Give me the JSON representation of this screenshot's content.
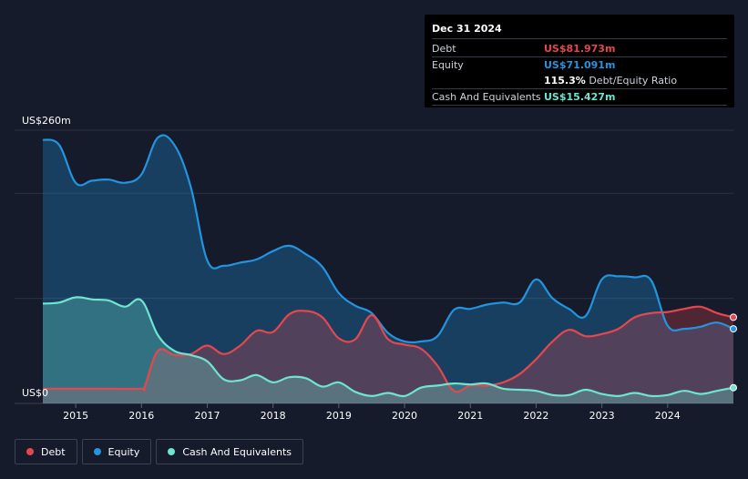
{
  "tooltip": {
    "date": "Dec 31 2024",
    "debt_label": "Debt",
    "debt_value": "US$81.973m",
    "equity_label": "Equity",
    "equity_value": "US$71.091m",
    "ratio_value": "115.3%",
    "ratio_label": "Debt/Equity Ratio",
    "cash_label": "Cash And Equivalents",
    "cash_value": "US$15.427m"
  },
  "legend": {
    "debt": "Debt",
    "equity": "Equity",
    "cash": "Cash And Equivalents"
  },
  "colors": {
    "debt": "#e5474f",
    "equity": "#2394df",
    "cash": "#6de5cf",
    "background": "#151b2a"
  },
  "chart_data": {
    "type": "area",
    "title": "",
    "xlabel": "",
    "ylabel": "",
    "y_top_label": "US$260m",
    "y_bottom_label": "US$0",
    "ylim": [
      0,
      260
    ],
    "xlim": [
      2014.5,
      2025.0
    ],
    "x_ticks": [
      "2015",
      "2016",
      "2017",
      "2018",
      "2019",
      "2020",
      "2021",
      "2022",
      "2023",
      "2024"
    ],
    "grid": true,
    "legend_position": "bottom-left",
    "series": [
      {
        "name": "Debt",
        "color": "#e5474f",
        "points": [
          [
            2014.5,
            14
          ],
          [
            2015.0,
            14
          ],
          [
            2015.5,
            14
          ],
          [
            2016.0,
            14
          ],
          [
            2016.05,
            16
          ],
          [
            2016.25,
            50
          ],
          [
            2016.5,
            46
          ],
          [
            2016.75,
            47
          ],
          [
            2017.0,
            55
          ],
          [
            2017.25,
            47
          ],
          [
            2017.5,
            55
          ],
          [
            2017.75,
            69
          ],
          [
            2018.0,
            68
          ],
          [
            2018.25,
            85
          ],
          [
            2018.5,
            88
          ],
          [
            2018.75,
            82
          ],
          [
            2019.0,
            62
          ],
          [
            2019.25,
            61
          ],
          [
            2019.5,
            84
          ],
          [
            2019.75,
            61
          ],
          [
            2020.0,
            56
          ],
          [
            2020.25,
            52
          ],
          [
            2020.5,
            36
          ],
          [
            2020.75,
            12
          ],
          [
            2021.0,
            17
          ],
          [
            2021.25,
            17
          ],
          [
            2021.5,
            20
          ],
          [
            2021.75,
            28
          ],
          [
            2022.0,
            42
          ],
          [
            2022.25,
            59
          ],
          [
            2022.5,
            70
          ],
          [
            2022.75,
            64
          ],
          [
            2023.0,
            66
          ],
          [
            2023.25,
            71
          ],
          [
            2023.5,
            82
          ],
          [
            2023.75,
            86
          ],
          [
            2024.0,
            87
          ],
          [
            2024.25,
            90
          ],
          [
            2024.5,
            92
          ],
          [
            2024.75,
            86
          ],
          [
            2025.0,
            82
          ]
        ]
      },
      {
        "name": "Equity",
        "color": "#2394df",
        "points": [
          [
            2014.5,
            251
          ],
          [
            2014.75,
            246
          ],
          [
            2015.0,
            210
          ],
          [
            2015.25,
            212
          ],
          [
            2015.5,
            213
          ],
          [
            2015.75,
            210
          ],
          [
            2016.0,
            218
          ],
          [
            2016.25,
            253
          ],
          [
            2016.5,
            246
          ],
          [
            2016.75,
            206
          ],
          [
            2017.0,
            136
          ],
          [
            2017.25,
            131
          ],
          [
            2017.5,
            134
          ],
          [
            2017.75,
            137
          ],
          [
            2018.0,
            145
          ],
          [
            2018.25,
            150
          ],
          [
            2018.5,
            142
          ],
          [
            2018.75,
            130
          ],
          [
            2019.0,
            105
          ],
          [
            2019.25,
            93
          ],
          [
            2019.5,
            86
          ],
          [
            2019.75,
            67
          ],
          [
            2020.0,
            59
          ],
          [
            2020.25,
            59
          ],
          [
            2020.5,
            64
          ],
          [
            2020.75,
            89
          ],
          [
            2021.0,
            90
          ],
          [
            2021.25,
            94
          ],
          [
            2021.5,
            96
          ],
          [
            2021.75,
            96
          ],
          [
            2022.0,
            118
          ],
          [
            2022.25,
            100
          ],
          [
            2022.5,
            90
          ],
          [
            2022.75,
            83
          ],
          [
            2023.0,
            118
          ],
          [
            2023.25,
            121
          ],
          [
            2023.5,
            120
          ],
          [
            2023.75,
            117
          ],
          [
            2024.0,
            74
          ],
          [
            2024.25,
            71
          ],
          [
            2024.5,
            73
          ],
          [
            2024.75,
            77
          ],
          [
            2025.0,
            71
          ]
        ]
      },
      {
        "name": "Cash And Equivalents",
        "color": "#6de5cf",
        "points": [
          [
            2014.5,
            95
          ],
          [
            2014.75,
            96
          ],
          [
            2015.0,
            101
          ],
          [
            2015.25,
            99
          ],
          [
            2015.5,
            98
          ],
          [
            2015.75,
            92
          ],
          [
            2016.0,
            98
          ],
          [
            2016.25,
            65
          ],
          [
            2016.5,
            50
          ],
          [
            2016.75,
            46
          ],
          [
            2017.0,
            40
          ],
          [
            2017.25,
            23
          ],
          [
            2017.5,
            22
          ],
          [
            2017.75,
            27
          ],
          [
            2018.0,
            20
          ],
          [
            2018.25,
            25
          ],
          [
            2018.5,
            24
          ],
          [
            2018.75,
            16
          ],
          [
            2019.0,
            20
          ],
          [
            2019.25,
            11
          ],
          [
            2019.5,
            7
          ],
          [
            2019.75,
            10
          ],
          [
            2020.0,
            7
          ],
          [
            2020.25,
            15
          ],
          [
            2020.5,
            17
          ],
          [
            2020.75,
            19
          ],
          [
            2021.0,
            18
          ],
          [
            2021.25,
            19
          ],
          [
            2021.5,
            14
          ],
          [
            2021.75,
            13
          ],
          [
            2022.0,
            12
          ],
          [
            2022.25,
            8
          ],
          [
            2022.5,
            8
          ],
          [
            2022.75,
            13
          ],
          [
            2023.0,
            9
          ],
          [
            2023.25,
            7
          ],
          [
            2023.5,
            10
          ],
          [
            2023.75,
            7
          ],
          [
            2024.0,
            8
          ],
          [
            2024.25,
            12
          ],
          [
            2024.5,
            9
          ],
          [
            2024.75,
            12
          ],
          [
            2025.0,
            15
          ]
        ]
      }
    ]
  }
}
